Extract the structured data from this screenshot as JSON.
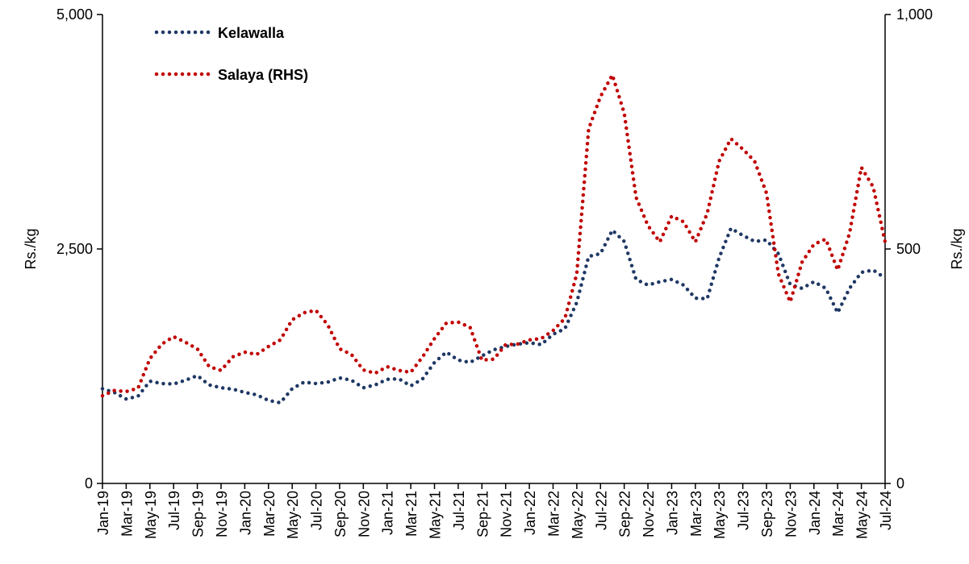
{
  "chart_data": {
    "type": "line",
    "y_label": "Rs./kg",
    "y2_label": "Rs./kg",
    "categories": [
      "Jan-19",
      null,
      "Mar-19",
      null,
      "May-19",
      null,
      "Jul-19",
      null,
      "Sep-19",
      null,
      "Nov-19",
      null,
      "Jan-20",
      null,
      "Mar-20",
      null,
      "May-20",
      null,
      "Jul-20",
      null,
      "Sep-20",
      null,
      "Nov-20",
      null,
      "Jan-21",
      null,
      "Mar-21",
      null,
      "May-21",
      null,
      "Jul-21",
      null,
      "Sep-21",
      null,
      "Nov-21",
      null,
      "Jan-22",
      null,
      "Mar-22",
      null,
      "May-22",
      null,
      "Jul-22",
      null,
      "Sep-22",
      null,
      "Nov-22",
      null,
      "Jan-23",
      null,
      "Mar-23",
      null,
      "May-23",
      null,
      "Jul-23",
      null,
      "Sep-23",
      null,
      "Nov-23",
      null,
      "Jan-24",
      null,
      "Mar-24",
      null,
      "May-24",
      null,
      "Jul-24"
    ],
    "series": [
      {
        "name": "Kelawalla",
        "color": "#1f3864",
        "values": [
          1010,
          970,
          900,
          930,
          1090,
          1065,
          1060,
          1100,
          1150,
          1050,
          1020,
          1005,
          970,
          945,
          885,
          860,
          1010,
          1080,
          1065,
          1080,
          1125,
          1100,
          1020,
          1050,
          1110,
          1115,
          1040,
          1115,
          1290,
          1400,
          1315,
          1290,
          1360,
          1425,
          1460,
          1485,
          1500,
          1480,
          1590,
          1650,
          1930,
          2420,
          2450,
          2700,
          2580,
          2175,
          2115,
          2150,
          2175,
          2115,
          1975,
          1970,
          2405,
          2720,
          2645,
          2580,
          2595,
          2450,
          2120,
          2080,
          2150,
          2080,
          1820,
          2080,
          2250,
          2275,
          2190
        ]
      },
      {
        "name": "Salaya (RHS)",
        "color": "#c00000",
        "axis": "y2",
        "values": [
          187,
          198,
          196,
          203,
          266,
          297,
          313,
          301,
          287,
          249,
          241,
          270,
          280,
          275,
          292,
          306,
          349,
          364,
          369,
          338,
          287,
          275,
          242,
          235,
          249,
          241,
          237,
          270,
          309,
          342,
          344,
          333,
          263,
          265,
          296,
          297,
          306,
          309,
          326,
          352,
          447,
          756,
          825,
          871,
          790,
          610,
          550,
          515,
          570,
          558,
          515,
          576,
          687,
          735,
          713,
          687,
          619,
          447,
          387,
          472,
          510,
          521,
          455,
          533,
          674,
          632,
          515
        ]
      }
    ],
    "ylim": [
      0,
      5000
    ],
    "yticks": [
      0,
      {
        "value": 2500,
        "label": "2,500"
      },
      {
        "value": 5000,
        "label": "5,000"
      }
    ],
    "y2lim": [
      0,
      1000
    ],
    "y2ticks": [
      0,
      500,
      {
        "value": 1000,
        "label": "1,000"
      }
    ],
    "legend": "upper left"
  }
}
